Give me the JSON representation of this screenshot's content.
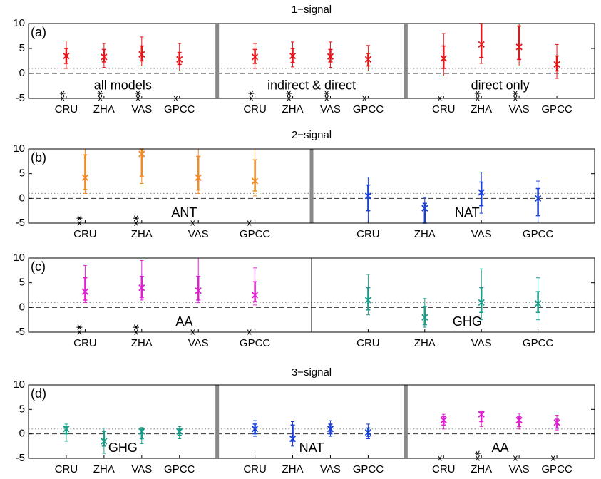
{
  "chart_data": [
    {
      "type": "errorbar",
      "title": "1−signal",
      "label": "(a)",
      "ylim": [
        -5,
        10
      ],
      "yticks": [
        -5,
        0,
        5,
        10
      ],
      "hlines": [
        {
          "value": 0,
          "style": "dashed"
        },
        {
          "value": 1,
          "style": "dotted"
        }
      ],
      "divider": "thick",
      "panels": [
        {
          "annotation": "all models",
          "color": "#e8141a",
          "categories": [
            "CRU",
            "ZHA",
            "VAS",
            "GPCC"
          ],
          "values": [
            3.5,
            3.3,
            3.8,
            2.8
          ],
          "inner": [
            [
              2,
              5
            ],
            [
              2.3,
              4.8
            ],
            [
              2.5,
              5.5
            ],
            [
              1.8,
              4.2
            ]
          ],
          "outer": [
            [
              1,
              6.5
            ],
            [
              1.2,
              6
            ],
            [
              1.5,
              7.3
            ],
            [
              0.5,
              6
            ]
          ],
          "stars": [
            [
              -4,
              -5
            ],
            [
              -4,
              -5
            ],
            [
              -4,
              -5
            ],
            [
              -5
            ]
          ]
        },
        {
          "annotation": "indirect & direct",
          "color": "#e8141a",
          "categories": [
            "CRU",
            "ZHA",
            "VAS",
            "GPCC"
          ],
          "values": [
            3.3,
            3.5,
            3.4,
            2.8
          ],
          "inner": [
            [
              2,
              4.8
            ],
            [
              2.2,
              5
            ],
            [
              2.3,
              4.8
            ],
            [
              1.5,
              4
            ]
          ],
          "outer": [
            [
              1,
              6
            ],
            [
              1.3,
              6.3
            ],
            [
              1.2,
              6.3
            ],
            [
              0.5,
              5.6
            ]
          ],
          "stars": [
            [
              -4,
              -5
            ],
            [
              -4,
              -5
            ],
            [
              -4,
              -5
            ],
            [
              -5
            ]
          ]
        },
        {
          "annotation": "direct only",
          "color": "#e8141a",
          "categories": [
            "CRU",
            "ZHA",
            "VAS",
            "GPCC"
          ],
          "values": [
            3,
            5.8,
            5.3,
            1.8
          ],
          "inner": [
            [
              1,
              5.5
            ],
            [
              3.2,
              10
            ],
            [
              2.8,
              9.5
            ],
            [
              0.5,
              3.5
            ]
          ],
          "outer": [
            [
              -0.5,
              8
            ],
            [
              2,
              10
            ],
            [
              1.5,
              10
            ],
            [
              -1,
              5.8
            ]
          ],
          "stars": [
            [
              -5
            ],
            [
              -4,
              -5
            ],
            [
              -4,
              -5
            ],
            []
          ]
        }
      ]
    },
    {
      "type": "errorbar",
      "title": "2−signal",
      "label": "(b)",
      "ylim": [
        -5,
        10
      ],
      "yticks": [
        -5,
        0,
        5,
        10
      ],
      "hlines": [
        {
          "value": 0,
          "style": "dashed"
        },
        {
          "value": 1,
          "style": "dotted"
        }
      ],
      "divider": "thick",
      "panels": [
        {
          "annotation": "ANT",
          "color": "#f08a24",
          "categories": [
            "CRU",
            "ZHA",
            "VAS",
            "GPCC"
          ],
          "values": [
            4.2,
            9,
            4.2,
            3.5
          ],
          "inner": [
            [
              1.8,
              8.8
            ],
            [
              4.5,
              10
            ],
            [
              1.7,
              8.5
            ],
            [
              1.5,
              7.8
            ]
          ],
          "outer": [
            [
              1,
              10
            ],
            [
              3,
              10
            ],
            [
              1,
              10
            ],
            [
              0.5,
              10
            ]
          ],
          "stars": [
            [
              -4,
              -5
            ],
            [
              -4,
              -5
            ],
            [
              -5
            ],
            [
              -5
            ]
          ]
        },
        {
          "annotation": "NAT",
          "color": "#1a3fd6",
          "categories": [
            "CRU",
            "ZHA",
            "VAS",
            "GPCC"
          ],
          "values": [
            0.5,
            -2,
            1.2,
            0
          ],
          "inner": [
            [
              -2.5,
              2.7
            ],
            [
              -5,
              -1
            ],
            [
              -1.5,
              3.3
            ],
            [
              -3.5,
              2
            ]
          ],
          "outer": [
            [
              -5,
              4.3
            ],
            [
              -5,
              0.2
            ],
            [
              -3,
              5.3
            ],
            [
              -5,
              3.5
            ]
          ],
          "stars": [
            [],
            [],
            [],
            []
          ]
        }
      ]
    },
    {
      "type": "errorbar",
      "label": "(c)",
      "ylim": [
        -5,
        10
      ],
      "yticks": [
        -5,
        0,
        5,
        10
      ],
      "hlines": [
        {
          "value": 0,
          "style": "dashed"
        },
        {
          "value": 1,
          "style": "dotted"
        }
      ],
      "divider": "thin",
      "panels": [
        {
          "annotation": "AA",
          "color": "#e020d0",
          "categories": [
            "CRU",
            "ZHA",
            "VAS",
            "GPCC"
          ],
          "values": [
            3.2,
            4,
            3.4,
            2.5
          ],
          "inner": [
            [
              1.5,
              6
            ],
            [
              2,
              6.3
            ],
            [
              1.5,
              6.3
            ],
            [
              1.2,
              5.2
            ]
          ],
          "outer": [
            [
              1,
              8.5
            ],
            [
              1.5,
              9.5
            ],
            [
              1,
              10
            ],
            [
              0.5,
              8
            ]
          ],
          "stars": [
            [
              -4,
              -5
            ],
            [
              -4,
              -5
            ],
            [
              -5
            ],
            [
              -5
            ]
          ]
        },
        {
          "annotation": "GHG",
          "color": "#1a9e8a",
          "categories": [
            "CRU",
            "ZHA",
            "VAS",
            "GPCC"
          ],
          "values": [
            1.5,
            -2,
            1,
            0.8
          ],
          "inner": [
            [
              -0.5,
              4
            ],
            [
              -3.5,
              0.2
            ],
            [
              -1,
              4
            ],
            [
              -1,
              3.2
            ]
          ],
          "outer": [
            [
              -1.5,
              6.7
            ],
            [
              -4,
              1.8
            ],
            [
              -2.5,
              7.8
            ],
            [
              -2.5,
              6
            ]
          ],
          "stars": [
            [],
            [],
            [],
            []
          ]
        }
      ]
    },
    {
      "type": "errorbar",
      "title": "3−signal",
      "label": "(d)",
      "ylim": [
        -5,
        10
      ],
      "yticks": [
        -5,
        0,
        5,
        10
      ],
      "hlines": [
        {
          "value": 0,
          "style": "dashed"
        },
        {
          "value": 1,
          "style": "dotted"
        }
      ],
      "divider": "thick",
      "panels": [
        {
          "annotation": "GHG",
          "color": "#1a9e8a",
          "categories": [
            "CRU",
            "ZHA",
            "VAS",
            "GPCC"
          ],
          "values": [
            1,
            -1.5,
            0.5,
            0.5
          ],
          "inner": [
            [
              0,
              1.5
            ],
            [
              -2.5,
              0.5
            ],
            [
              -1,
              1
            ],
            [
              -0.3,
              1
            ]
          ],
          "outer": [
            [
              -1.5,
              2
            ],
            [
              -4,
              1.2
            ],
            [
              -2,
              1.3
            ],
            [
              -1,
              1.5
            ]
          ],
          "stars": [
            [],
            [],
            [],
            []
          ]
        },
        {
          "annotation": "NAT",
          "color": "#1a3fd6",
          "categories": [
            "CRU",
            "ZHA",
            "VAS",
            "GPCC"
          ],
          "values": [
            1,
            -1,
            1,
            0.3
          ],
          "inner": [
            [
              0,
              2
            ],
            [
              -1.5,
              1.8
            ],
            [
              0,
              2
            ],
            [
              -0.5,
              1.2
            ]
          ],
          "outer": [
            [
              -0.5,
              2.7
            ],
            [
              -2.5,
              2.5
            ],
            [
              -0.5,
              2.7
            ],
            [
              -1,
              2
            ]
          ],
          "stars": [
            [],
            [],
            [],
            []
          ]
        },
        {
          "annotation": "AA",
          "color": "#e020d0",
          "categories": [
            "CRU",
            "ZHA",
            "VAS",
            "GPCC"
          ],
          "values": [
            2.8,
            4,
            2.8,
            2.3
          ],
          "inner": [
            [
              1.8,
              3.5
            ],
            [
              2.5,
              4.5
            ],
            [
              1.5,
              3.5
            ],
            [
              1.2,
              3
            ]
          ],
          "outer": [
            [
              1,
              4
            ],
            [
              1.5,
              4.7
            ],
            [
              1,
              4.2
            ],
            [
              0.8,
              3.8
            ]
          ],
          "stars": [
            [
              -5
            ],
            [
              -4,
              -5
            ],
            [
              -5
            ],
            [
              -5
            ]
          ]
        }
      ]
    }
  ]
}
